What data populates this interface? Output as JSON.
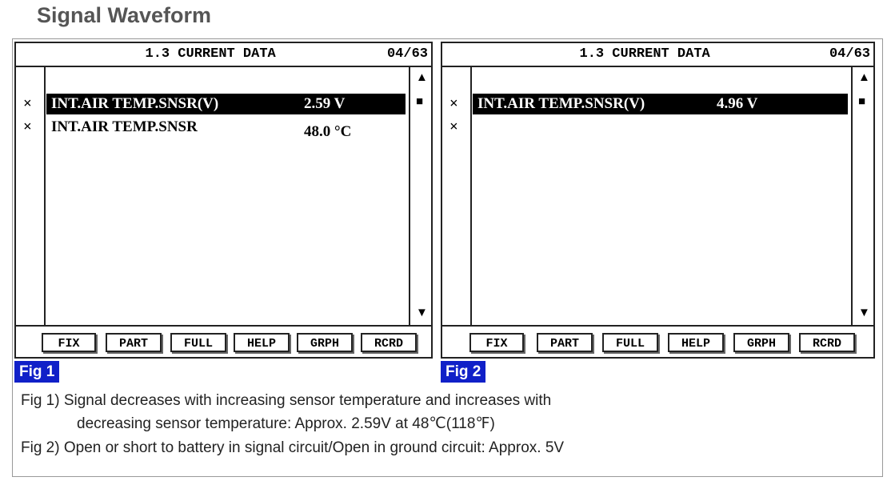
{
  "title": "Signal Waveform",
  "panels": [
    {
      "header": "1.3 CURRENT DATA",
      "page": "04/63",
      "rows": [
        {
          "marker": "×",
          "name": "INT.AIR TEMP.SNSR(V)",
          "value": "2.59 V",
          "selected": true
        },
        {
          "marker": "×",
          "name": "INT.AIR TEMP.SNSR",
          "value": "48.0 °C",
          "selected": false
        }
      ],
      "buttons": [
        "FIX",
        "PART",
        "FULL",
        "HELP",
        "GRPH",
        "RCRD"
      ],
      "fig": "Fig 1"
    },
    {
      "header": "1.3 CURRENT DATA",
      "page": "04/63",
      "rows": [
        {
          "marker": "×",
          "name": "INT.AIR TEMP.SNSR(V)",
          "value": "4.96 V",
          "selected": true
        },
        {
          "marker": "×",
          "selected": false
        }
      ],
      "buttons": [
        "FIX",
        "PART",
        "FULL",
        "HELP",
        "GRPH",
        "RCRD"
      ],
      "fig": "Fig 2"
    }
  ],
  "notes": [
    "Fig 1) Signal decreases with increasing sensor temperature and increases with",
    "decreasing sensor temperature: Approx. 2.59V at 48℃(118℉)",
    "Fig 2) Open or short to battery in signal circuit/Open in ground circuit: Approx. 5V"
  ]
}
